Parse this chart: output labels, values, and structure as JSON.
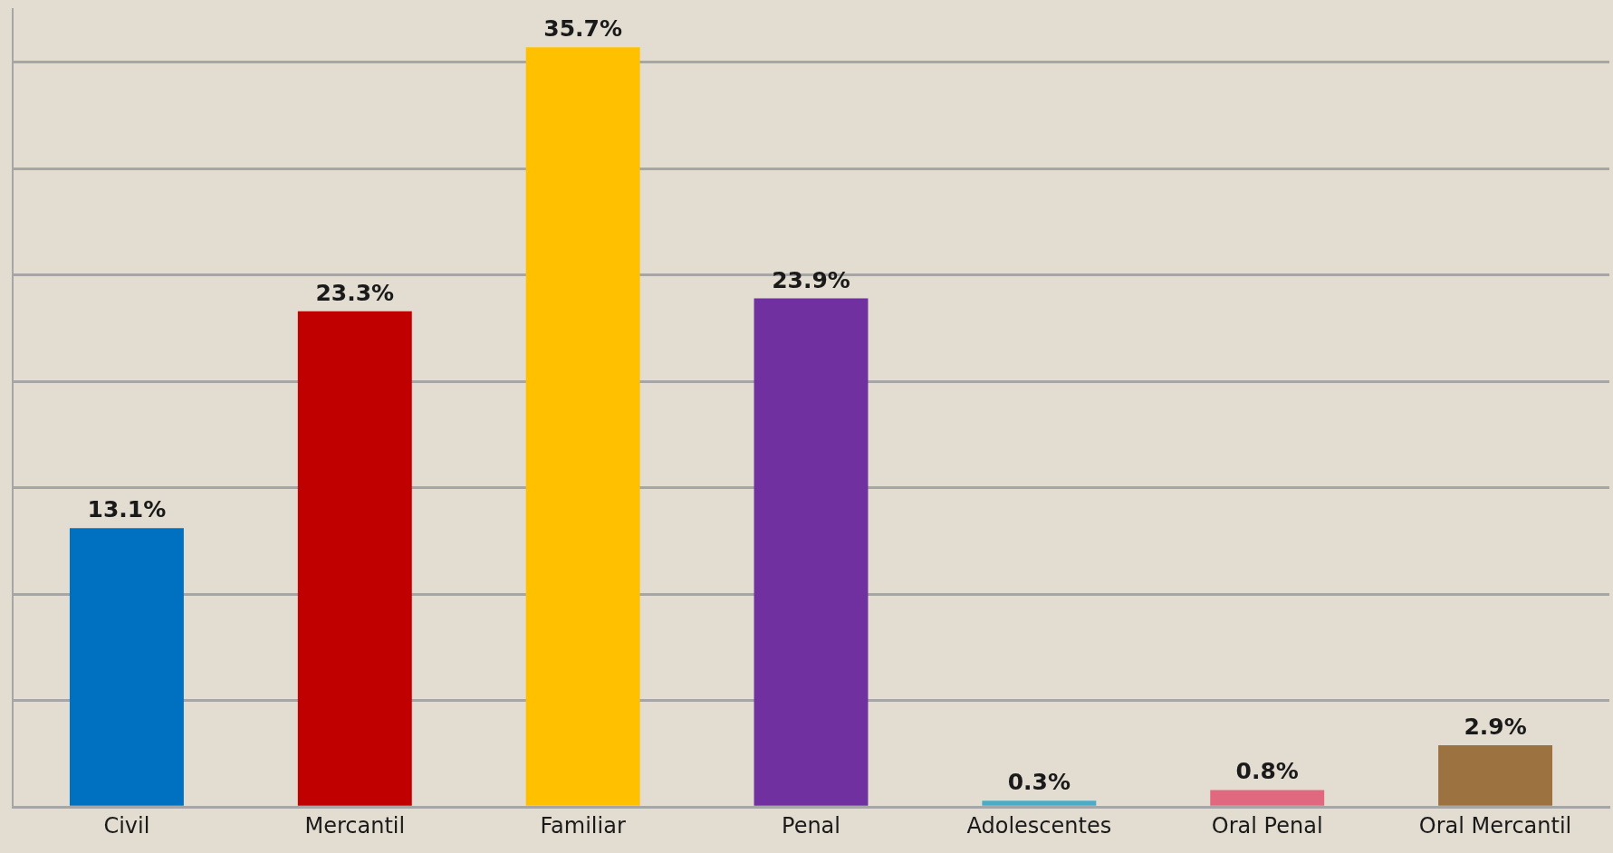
{
  "chart_data": {
    "type": "bar",
    "categories": [
      "Civil",
      "Mercantil",
      "Familiar",
      "Penal",
      "Adolescentes",
      "Oral Penal",
      "Oral Mercantil"
    ],
    "values": [
      13.1,
      23.3,
      35.7,
      23.9,
      0.3,
      0.8,
      2.9
    ],
    "colors": [
      "#0070c0",
      "#c00000",
      "#ffc000",
      "#7030a0",
      "#4bacc6",
      "#e0697f",
      "#9c7240"
    ],
    "value_labels": [
      "13.1%",
      "23.3%",
      "35.7%",
      "23.9%",
      "0.3%",
      "0.8%",
      "2.9%"
    ],
    "ylim": [
      0,
      37.5
    ],
    "yticks": [
      {
        "value": 0,
        "label": null
      },
      {
        "value": 5,
        "label": null
      },
      {
        "value": 10,
        "label": null
      },
      {
        "value": 15,
        "label": null
      },
      {
        "value": 20,
        "label": null
      },
      {
        "value": 25,
        "label": null
      },
      {
        "value": 30,
        "label": null
      },
      {
        "value": 35,
        "label": null
      }
    ],
    "grid": "y",
    "tick_labels": "x",
    "legend": false
  }
}
